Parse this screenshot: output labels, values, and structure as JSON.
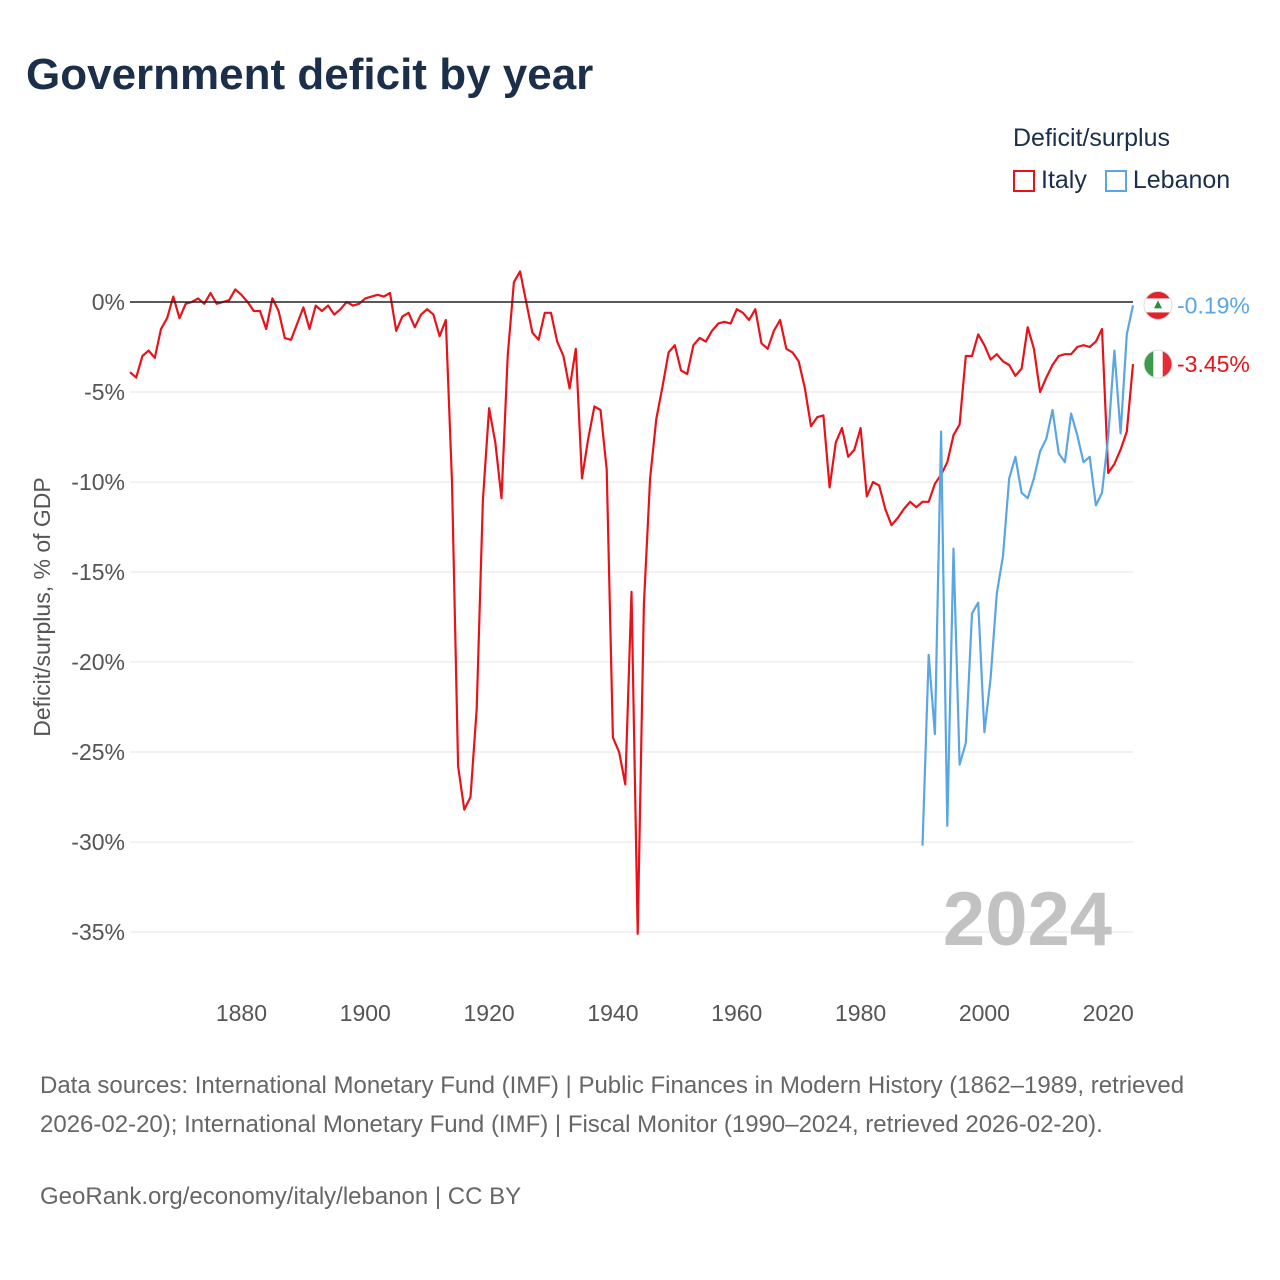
{
  "title": "Government deficit by year",
  "legend": {
    "title": "Deficit/surplus",
    "items": [
      {
        "label": "Italy",
        "color": "#e8131a"
      },
      {
        "label": "Lebanon",
        "color": "#5aa6e5"
      }
    ]
  },
  "chart_data": {
    "type": "line",
    "title": "Government deficit by year",
    "xlabel": "",
    "ylabel": "Deficit/surplus, % of GDP",
    "xlim": [
      1862,
      2024
    ],
    "ylim": [
      -35,
      0
    ],
    "xticks": [
      1880,
      1900,
      1920,
      1940,
      1960,
      1980,
      2000,
      2020
    ],
    "x_tick_labels": [
      "1880",
      "1900",
      "1920",
      "1940",
      "1960",
      "1980",
      "2000",
      "2020"
    ],
    "yticks": [
      0,
      -5,
      -10,
      -15,
      -20,
      -25,
      -30,
      -35
    ],
    "y_tick_labels": [
      "0%",
      "-5%",
      "-10%",
      "-15%",
      "-20%",
      "-25%",
      "-30%",
      "-35%"
    ],
    "year_label": "2024",
    "series": [
      {
        "name": "Italy",
        "color": "#e8131a",
        "end_label": "-3.45%",
        "x": [
          1862,
          1863,
          1864,
          1865,
          1866,
          1867,
          1868,
          1869,
          1870,
          1871,
          1872,
          1873,
          1874,
          1875,
          1876,
          1877,
          1878,
          1879,
          1880,
          1881,
          1882,
          1883,
          1884,
          1885,
          1886,
          1887,
          1888,
          1889,
          1890,
          1891,
          1892,
          1893,
          1894,
          1895,
          1896,
          1897,
          1898,
          1899,
          1900,
          1901,
          1902,
          1903,
          1904,
          1905,
          1906,
          1907,
          1908,
          1909,
          1910,
          1911,
          1912,
          1913,
          1914,
          1915,
          1916,
          1917,
          1918,
          1919,
          1920,
          1921,
          1922,
          1923,
          1924,
          1925,
          1926,
          1927,
          1928,
          1929,
          1930,
          1931,
          1932,
          1933,
          1934,
          1935,
          1936,
          1937,
          1938,
          1939,
          1940,
          1941,
          1942,
          1943,
          1944,
          1945,
          1946,
          1947,
          1948,
          1949,
          1950,
          1951,
          1952,
          1953,
          1954,
          1955,
          1956,
          1957,
          1958,
          1959,
          1960,
          1961,
          1962,
          1963,
          1964,
          1965,
          1966,
          1967,
          1968,
          1969,
          1970,
          1971,
          1972,
          1973,
          1974,
          1975,
          1976,
          1977,
          1978,
          1979,
          1980,
          1981,
          1982,
          1983,
          1984,
          1985,
          1986,
          1987,
          1988,
          1989,
          1990,
          1991,
          1992,
          1993,
          1994,
          1995,
          1996,
          1997,
          1998,
          1999,
          2000,
          2001,
          2002,
          2003,
          2004,
          2005,
          2006,
          2007,
          2008,
          2009,
          2010,
          2011,
          2012,
          2013,
          2014,
          2015,
          2016,
          2017,
          2018,
          2019,
          2020,
          2021,
          2022,
          2023,
          2024
        ],
        "y": [
          -3.9,
          -4.2,
          -3.0,
          -2.7,
          -3.1,
          -1.5,
          -0.9,
          0.3,
          -0.9,
          -0.1,
          0.0,
          0.2,
          -0.1,
          0.5,
          -0.1,
          0.0,
          0.1,
          0.7,
          0.4,
          0.0,
          -0.5,
          -0.5,
          -1.5,
          0.2,
          -0.5,
          -2.0,
          -2.1,
          -1.2,
          -0.3,
          -1.5,
          -0.2,
          -0.5,
          -0.2,
          -0.7,
          -0.4,
          0.0,
          -0.2,
          -0.1,
          0.2,
          0.3,
          0.4,
          0.3,
          0.5,
          -1.6,
          -0.8,
          -0.6,
          -1.4,
          -0.7,
          -0.4,
          -0.7,
          -1.9,
          -1.0,
          -10.0,
          -25.8,
          -28.2,
          -27.5,
          -22.6,
          -11.0,
          -5.9,
          -7.8,
          -10.9,
          -3.0,
          1.1,
          1.7,
          0.0,
          -1.7,
          -2.1,
          -0.6,
          -0.6,
          -2.2,
          -3.0,
          -4.8,
          -2.6,
          -9.8,
          -7.6,
          -5.8,
          -6.0,
          -9.3,
          -24.2,
          -25.0,
          -26.8,
          -16.1,
          -35.1,
          -16.8,
          -9.8,
          -6.5,
          -4.7,
          -2.8,
          -2.4,
          -3.8,
          -4.0,
          -2.4,
          -2.0,
          -2.2,
          -1.6,
          -1.2,
          -1.1,
          -1.2,
          -0.4,
          -0.6,
          -1.0,
          -0.4,
          -2.3,
          -2.6,
          -1.6,
          -1.0,
          -2.6,
          -2.8,
          -3.3,
          -4.8,
          -6.9,
          -6.4,
          -6.3,
          -10.3,
          -7.8,
          -7.0,
          -8.6,
          -8.2,
          -7.0,
          -10.8,
          -10.0,
          -10.2,
          -11.5,
          -12.4,
          -12.0,
          -11.5,
          -11.1,
          -11.4,
          -11.1,
          -11.1,
          -10.1,
          -9.6,
          -8.9,
          -7.4,
          -6.8,
          -3.0,
          -3.0,
          -1.8,
          -2.4,
          -3.2,
          -2.9,
          -3.3,
          -3.5,
          -4.1,
          -3.7,
          -1.4,
          -2.6,
          -5.0,
          -4.2,
          -3.5,
          -3.0,
          -2.9,
          -2.9,
          -2.5,
          -2.4,
          -2.5,
          -2.2,
          -1.5,
          -9.5,
          -9.0,
          -8.2,
          -7.2,
          -3.45
        ]
      },
      {
        "name": "Lebanon",
        "color": "#5aa6e5",
        "end_label": "-0.19%",
        "x": [
          1990,
          1991,
          1992,
          1993,
          1994,
          1995,
          1996,
          1997,
          1998,
          1999,
          2000,
          2001,
          2002,
          2003,
          2004,
          2005,
          2006,
          2007,
          2008,
          2009,
          2010,
          2011,
          2012,
          2013,
          2014,
          2015,
          2016,
          2017,
          2018,
          2019,
          2020,
          2021,
          2022,
          2023,
          2024
        ],
        "y": [
          -30.2,
          -19.6,
          -24.0,
          -7.2,
          -29.1,
          -13.7,
          -25.7,
          -24.5,
          -17.3,
          -16.7,
          -23.9,
          -20.9,
          -16.2,
          -14.1,
          -9.8,
          -8.6,
          -10.6,
          -10.9,
          -9.8,
          -8.3,
          -7.6,
          -6.0,
          -8.4,
          -8.9,
          -6.2,
          -7.4,
          -8.9,
          -8.6,
          -11.3,
          -10.6,
          -7.5,
          -2.7,
          -7.3,
          -1.8,
          -0.19
        ]
      }
    ]
  },
  "footer": {
    "sources": "Data sources: International Monetary Fund (IMF) | Public Finances in Modern History (1862–1989, retrieved 2026-02-20); International Monetary Fund (IMF) | Fiscal Monitor (1990–2024, retrieved 2026-02-20).",
    "credit": "GeoRank.org/economy/italy/lebanon | CC BY"
  }
}
